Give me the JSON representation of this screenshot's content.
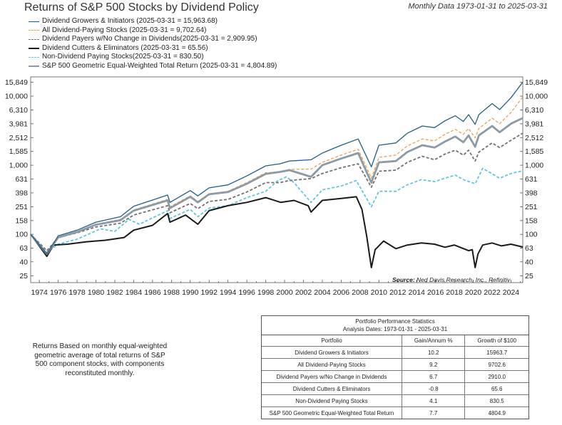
{
  "title": "Returns of S&P 500 Stocks by Dividend Policy",
  "subtitle": "Monthly Data 1973-01-31 to 2025-03-31",
  "source_label": "Source:",
  "source_text": "Ned Davis Research, Inc., Refinitiv",
  "note": "Returns Based on monthly equal-weighted geometric average of total returns of S&P 500 component stocks, with components reconstituted monthly.",
  "stats_table": {
    "title": "Portfolio Performance Statistics",
    "dates": "Analysis Dates: 1973-01-31 - 2025-03-31",
    "headers": [
      "Portfolio",
      "Gain/Annum %",
      "Growth of $100"
    ],
    "rows": [
      [
        "Dividend Growers & Initiators",
        "10.2",
        "15963.7"
      ],
      [
        "All Dividend-Paying Stocks",
        "9.2",
        "9702.6"
      ],
      [
        "Dividend Payers w/No Change in Dividends",
        "6.7",
        "2910.0"
      ],
      [
        "Dividend Cutters & Eliminators",
        "-0.8",
        "65.6"
      ],
      [
        "Non-Dividend Paying Stocks",
        "4.1",
        "830.5"
      ],
      [
        "S&P 500 Geometric Equal-Weighted Total Return",
        "7.7",
        "4804.9"
      ]
    ]
  },
  "chart_data": {
    "type": "line",
    "title": "Returns of S&P 500 Stocks by Dividend Policy",
    "y_scale": "log",
    "ylim": [
      20,
      19000
    ],
    "xlim": [
      1973.08,
      2025.25
    ],
    "y_ticks": [
      15849,
      10000,
      6310,
      3981,
      2512,
      1585,
      1000,
      631,
      398,
      251,
      158,
      100,
      63,
      40,
      25
    ],
    "y_tick_labels": [
      "15,849",
      "10,000",
      "6,310",
      "3,981",
      "2,512",
      "1,585",
      "1,000",
      "631",
      "398",
      "251",
      "158",
      "100",
      "63",
      "40",
      "25"
    ],
    "x_ticks": [
      1974,
      1976,
      1978,
      1980,
      1982,
      1984,
      1986,
      1988,
      1990,
      1992,
      1994,
      1996,
      1998,
      2000,
      2002,
      2004,
      2006,
      2008,
      2010,
      2012,
      2014,
      2016,
      2018,
      2020,
      2022,
      2024
    ],
    "grid": false,
    "legend_position": "top-left",
    "series": [
      {
        "name": "Dividend Growers & Initiators",
        "legend": "Dividend Growers & Initiators (2025-03-31 = 15,963.68)",
        "color": "#1f5f8b",
        "dash": "solid",
        "width": 1.3,
        "x": [
          1973.08,
          1974.8,
          1976,
          1978,
          1980,
          1982.6,
          1984,
          1987.6,
          1987.85,
          1990,
          1990.8,
          1992,
          1994,
          1996,
          1998,
          1999.5,
          2000.5,
          2002.8,
          2004,
          2006,
          2007.8,
          2009.2,
          2010,
          2011.8,
          2013,
          2014.6,
          2015.9,
          2017,
          2018.1,
          2018.95,
          2019.5,
          2020.2,
          2020.6,
          2022,
          2022.8,
          2024,
          2025.25
        ],
        "y": [
          100,
          52,
          95,
          115,
          150,
          180,
          255,
          370,
          290,
          430,
          360,
          470,
          520,
          700,
          980,
          1050,
          1150,
          1200,
          1500,
          1950,
          2400,
          950,
          1950,
          2100,
          2900,
          3700,
          3500,
          4400,
          5200,
          4300,
          5400,
          3900,
          5400,
          7800,
          6400,
          9500,
          15963.68
        ]
      },
      {
        "name": "All Dividend-Paying Stocks",
        "legend": "All Dividend-Paying Stocks (2025-03-31 = 9,702.64)",
        "color": "#f0a04a",
        "dash": "4,2.5",
        "width": 1.3,
        "x": [
          1973.08,
          1974.8,
          1976,
          1978,
          1980,
          1982.6,
          1984,
          1987.6,
          1987.85,
          1990,
          1990.8,
          1992,
          1994,
          1996,
          1998,
          1999.5,
          2000.5,
          2002.8,
          2004,
          2006,
          2007.8,
          2009.2,
          2010,
          2011.8,
          2013,
          2014.6,
          2015.9,
          2017,
          2018.1,
          2018.95,
          2019.5,
          2020.2,
          2020.6,
          2022,
          2022.8,
          2024,
          2025.25
        ],
        "y": [
          100,
          55,
          92,
          110,
          140,
          165,
          225,
          320,
          250,
          360,
          300,
          385,
          420,
          560,
          780,
          800,
          870,
          880,
          1100,
          1400,
          1700,
          650,
          1300,
          1400,
          1900,
          2400,
          2250,
          2800,
          3300,
          2800,
          3400,
          2500,
          3400,
          4800,
          4000,
          5800,
          9702.64
        ]
      },
      {
        "name": "Dividend Payers w/No Change in Dividends",
        "legend": "Dividend Payers w/No Change in Dividends(2025-03-31 = 2,909.95)",
        "color": "#707070",
        "dash": "4,2.5",
        "width": 1.8,
        "x": [
          1973.08,
          1974.8,
          1976,
          1978,
          1980,
          1982.6,
          1984,
          1987.6,
          1987.85,
          1990,
          1990.8,
          1992,
          1994,
          1996,
          1998,
          1999.5,
          2000.5,
          2002.8,
          2004,
          2006,
          2007.8,
          2009.2,
          2010,
          2011.8,
          2013,
          2014.6,
          2015.9,
          2017,
          2018.1,
          2018.95,
          2019.5,
          2020.2,
          2020.6,
          2022,
          2022.8,
          2024,
          2025.25
        ],
        "y": [
          100,
          58,
          90,
          105,
          128,
          145,
          190,
          260,
          205,
          280,
          235,
          300,
          320,
          410,
          560,
          560,
          600,
          640,
          760,
          920,
          1050,
          480,
          820,
          850,
          1100,
          1350,
          1200,
          1450,
          1650,
          1400,
          1650,
          1150,
          1550,
          2100,
          1800,
          2300,
          2909.95
        ]
      },
      {
        "name": "Dividend Cutters & Eliminators",
        "legend": "Dividend Cutters & Eliminators (2025-03-31 = 65.56)",
        "color": "#1a1a1a",
        "dash": "solid",
        "width": 2.0,
        "x": [
          1973.08,
          1974.8,
          1975.5,
          1977,
          1979,
          1981,
          1983,
          1984,
          1986,
          1987.6,
          1987.85,
          1989.5,
          1990.8,
          1992,
          1994,
          1996,
          1998,
          1999.6,
          2001,
          2002.5,
          2002.8,
          2004,
          2006,
          2007.6,
          2008.2,
          2008.7,
          2009.2,
          2009.6,
          2010.5,
          2011.8,
          2013,
          2014.5,
          2015.9,
          2017,
          2018,
          2019.5,
          2019.9,
          2020.2,
          2020.5,
          2021,
          2022,
          2023,
          2024,
          2025.25
        ],
        "y": [
          100,
          48,
          70,
          72,
          78,
          82,
          90,
          115,
          135,
          200,
          150,
          190,
          140,
          220,
          260,
          290,
          340,
          290,
          310,
          260,
          210,
          310,
          330,
          350,
          230,
          95,
          33,
          60,
          80,
          62,
          70,
          75,
          72,
          65,
          70,
          58,
          60,
          33,
          52,
          70,
          75,
          68,
          72,
          65.56
        ]
      },
      {
        "name": "Non-Dividend Paying Stocks",
        "legend": "Non-Dividend Paying Stocks(2025-03-31 = 830.50)",
        "color": "#5ec4e8",
        "dash": "4,2.5",
        "width": 1.8,
        "x": [
          1973.08,
          1974.8,
          1976,
          1978,
          1980.5,
          1982,
          1983.5,
          1984.6,
          1987.6,
          1987.85,
          1990,
          1990.8,
          1992,
          1994,
          1996,
          1998,
          1999.3,
          2000.2,
          2001,
          2002.8,
          2004,
          2006,
          2007.6,
          2009.2,
          2010,
          2011.8,
          2013,
          2014.5,
          2015.9,
          2017,
          2018.1,
          2018.95,
          2020.2,
          2021,
          2022.8,
          2024,
          2025.25
        ],
        "y": [
          100,
          55,
          72,
          85,
          120,
          110,
          165,
          140,
          220,
          170,
          230,
          180,
          240,
          260,
          340,
          420,
          600,
          680,
          560,
          290,
          440,
          500,
          600,
          250,
          420,
          420,
          520,
          620,
          580,
          650,
          720,
          620,
          540,
          900,
          650,
          760,
          830.5
        ]
      },
      {
        "name": "S&P 500 Geometric Equal-Weighted Total Return",
        "legend": "S&P 500 Geometric Equal-Weighted Total Return (2025-03-31 = 4,804.89)",
        "color": "#8a9ba6",
        "dash": "solid",
        "width": 2.8,
        "x": [
          1973.08,
          1974.8,
          1976,
          1978,
          1980,
          1982.6,
          1984,
          1987.6,
          1987.85,
          1990,
          1990.8,
          1992,
          1994,
          1996,
          1998,
          1999.5,
          2000.5,
          2002.8,
          2004,
          2006,
          2007.8,
          2009.2,
          2010,
          2011.8,
          2013,
          2014.6,
          2015.9,
          2017,
          2018.1,
          2018.95,
          2019.5,
          2020.2,
          2020.6,
          2022,
          2022.8,
          2024,
          2025.25
        ],
        "y": [
          100,
          52,
          90,
          108,
          138,
          160,
          220,
          310,
          240,
          350,
          290,
          380,
          410,
          540,
          750,
          800,
          850,
          680,
          1000,
          1250,
          1500,
          560,
          1100,
          1150,
          1550,
          1950,
          1800,
          2200,
          2600,
          2150,
          2700,
          1850,
          2700,
          3700,
          3000,
          4000,
          4804.89
        ]
      }
    ]
  }
}
